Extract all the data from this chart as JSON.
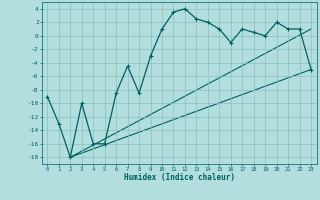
{
  "xlabel": "Humidex (Indice chaleur)",
  "background_color": "#b2dede",
  "grid_color": "#8fbfbf",
  "line_color": "#006060",
  "ylim": [
    -19,
    5
  ],
  "xlim": [
    -0.5,
    23.5
  ],
  "yticks": [
    4,
    2,
    0,
    -2,
    -4,
    -6,
    -8,
    -10,
    -12,
    -14,
    -16,
    -18
  ],
  "xticks": [
    0,
    1,
    2,
    3,
    4,
    5,
    6,
    7,
    8,
    9,
    10,
    11,
    12,
    13,
    14,
    15,
    16,
    17,
    18,
    19,
    20,
    21,
    22,
    23
  ],
  "series_main": {
    "x": [
      0,
      1,
      2,
      3,
      4,
      5,
      6,
      7,
      8,
      9,
      10,
      11,
      12,
      13,
      14,
      15,
      16,
      17,
      18,
      19,
      20,
      21,
      22,
      23
    ],
    "y": [
      -9,
      -13,
      -18,
      -10,
      -16,
      -16,
      -8.5,
      -4.5,
      -8.5,
      -3,
      1,
      3.5,
      4,
      2.5,
      2,
      1,
      -1,
      1,
      0.5,
      0,
      2,
      1,
      1,
      -5
    ]
  },
  "series_line1": {
    "x": [
      2,
      23
    ],
    "y": [
      -18,
      -5
    ]
  },
  "series_line2": {
    "x": [
      2,
      23
    ],
    "y": [
      -18,
      1
    ]
  }
}
